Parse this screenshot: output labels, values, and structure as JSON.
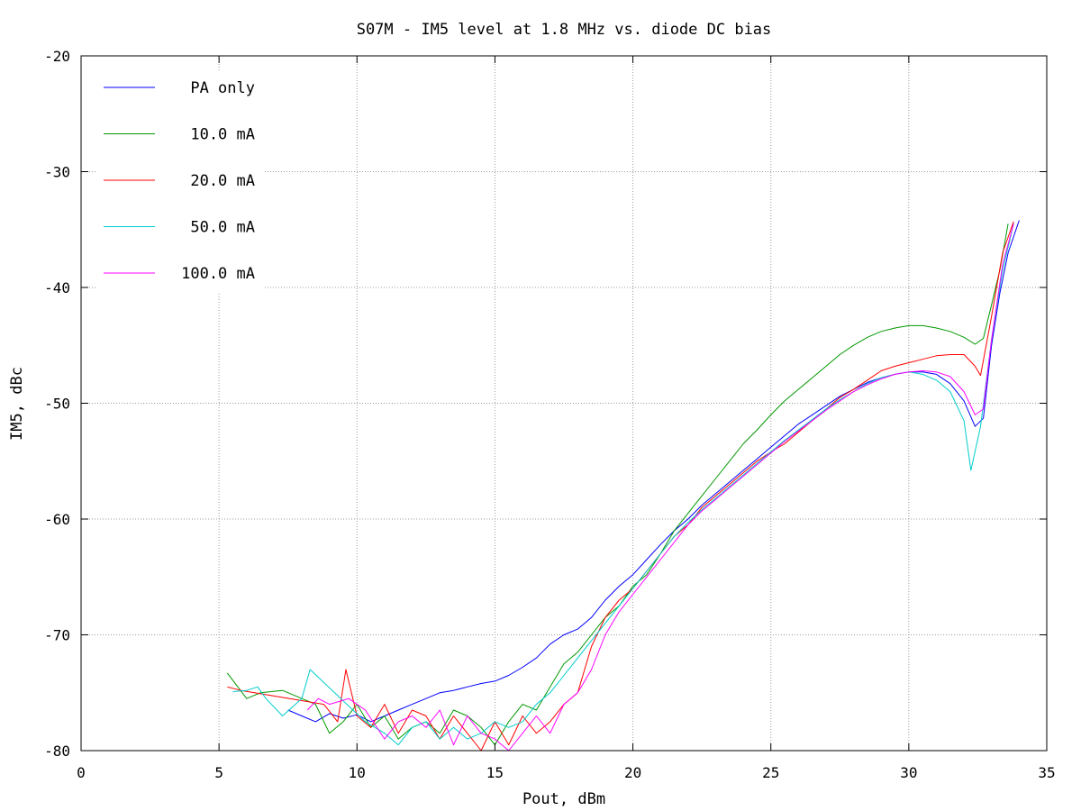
{
  "chart_data": {
    "type": "line",
    "title": "S07M - IM5 level at 1.8 MHz vs. diode DC bias",
    "xlabel": "Pout, dBm",
    "ylabel": "IM5, dBc",
    "xlim": [
      0,
      35
    ],
    "ylim": [
      -80,
      -20
    ],
    "xticks": [
      0,
      5,
      10,
      15,
      20,
      25,
      30,
      35
    ],
    "yticks": [
      -80,
      -70,
      -60,
      -50,
      -40,
      -30,
      -20
    ],
    "xtick_labels": [
      "0",
      "5",
      "10",
      "15",
      "20",
      "25",
      "30",
      "35"
    ],
    "ytick_labels": [
      "-80",
      "-70",
      "-60",
      "-50",
      "-40",
      "-30",
      "-20"
    ],
    "grid": true,
    "legend_position": "top-left",
    "series": [
      {
        "name": "PA only",
        "color": "#0000ff",
        "x": [
          7.5,
          8.0,
          8.5,
          9.0,
          9.5,
          10.0,
          10.5,
          11.0,
          11.5,
          12.0,
          12.5,
          13.0,
          13.5,
          14.0,
          14.5,
          15.0,
          15.5,
          16.0,
          16.5,
          17.0,
          17.5,
          18.0,
          18.5,
          19.0,
          19.5,
          20.0,
          20.5,
          21.0,
          21.5,
          22.0,
          22.5,
          23.0,
          23.5,
          24.0,
          24.5,
          25.0,
          25.5,
          26.0,
          26.5,
          27.0,
          27.5,
          28.0,
          28.5,
          29.0,
          29.5,
          30.0,
          30.5,
          31.0,
          31.5,
          32.0,
          32.4,
          32.7,
          33.0,
          33.3,
          33.6,
          34.0
        ],
        "y": [
          -76.5,
          -77.0,
          -77.5,
          -76.8,
          -77.2,
          -76.9,
          -77.5,
          -77.0,
          -76.5,
          -76.0,
          -75.5,
          -75.0,
          -74.8,
          -74.5,
          -74.2,
          -74.0,
          -73.5,
          -72.8,
          -72.0,
          -70.8,
          -70.0,
          -69.5,
          -68.5,
          -67.0,
          -65.8,
          -64.8,
          -63.5,
          -62.2,
          -61.0,
          -60.0,
          -58.8,
          -57.8,
          -56.8,
          -55.8,
          -54.8,
          -53.8,
          -52.8,
          -51.8,
          -51.0,
          -50.2,
          -49.4,
          -48.8,
          -48.2,
          -47.8,
          -47.5,
          -47.3,
          -47.3,
          -47.5,
          -48.3,
          -49.8,
          -52.0,
          -51.3,
          -45.0,
          -40.5,
          -37.0,
          -34.2
        ]
      },
      {
        "name": "10.0 mA",
        "color": "#009900",
        "x": [
          5.3,
          6.0,
          6.5,
          7.3,
          8.5,
          9.0,
          9.5,
          10.0,
          10.5,
          11.0,
          11.5,
          12.0,
          12.5,
          13.0,
          13.5,
          14.0,
          14.5,
          15.0,
          15.5,
          16.0,
          16.5,
          17.0,
          17.5,
          18.0,
          18.5,
          19.0,
          19.5,
          20.0,
          20.5,
          21.0,
          21.5,
          22.0,
          22.5,
          23.0,
          23.5,
          24.0,
          24.5,
          25.0,
          25.5,
          26.0,
          26.5,
          27.0,
          27.5,
          28.0,
          28.5,
          29.0,
          29.5,
          30.0,
          30.5,
          31.0,
          31.5,
          32.0,
          32.4,
          32.7,
          33.0,
          33.3,
          33.6
        ],
        "y": [
          -73.3,
          -75.5,
          -75.0,
          -74.8,
          -76.0,
          -78.5,
          -77.5,
          -76.0,
          -78.0,
          -77.0,
          -79.0,
          -78.0,
          -77.5,
          -78.5,
          -76.5,
          -77.0,
          -78.0,
          -79.5,
          -77.5,
          -76.0,
          -76.5,
          -74.5,
          -72.5,
          -71.5,
          -70.0,
          -68.5,
          -67.5,
          -65.8,
          -64.8,
          -63.0,
          -61.0,
          -59.5,
          -58.0,
          -56.5,
          -55.0,
          -53.5,
          -52.3,
          -51.0,
          -49.8,
          -48.8,
          -47.8,
          -46.8,
          -45.8,
          -45.0,
          -44.3,
          -43.8,
          -43.5,
          -43.3,
          -43.3,
          -43.5,
          -43.8,
          -44.3,
          -44.9,
          -44.4,
          -41.5,
          -38.5,
          -34.5
        ]
      },
      {
        "name": "20.0 mA",
        "color": "#ff0000",
        "x": [
          5.3,
          5.8,
          8.8,
          9.3,
          9.6,
          10.0,
          10.5,
          11.0,
          11.5,
          12.0,
          12.5,
          13.0,
          13.5,
          14.0,
          14.5,
          15.0,
          15.5,
          16.0,
          16.5,
          17.0,
          17.5,
          18.0,
          18.5,
          19.0,
          19.5,
          20.0,
          20.5,
          21.0,
          21.5,
          22.0,
          22.5,
          23.0,
          23.5,
          24.0,
          24.5,
          25.0,
          25.5,
          26.0,
          26.5,
          27.0,
          27.5,
          28.0,
          28.5,
          29.0,
          29.5,
          30.0,
          30.5,
          31.0,
          31.5,
          32.0,
          32.4,
          32.6,
          33.0,
          33.4,
          33.8
        ],
        "y": [
          -74.5,
          -74.8,
          -76.0,
          -77.5,
          -73.0,
          -77.0,
          -78.0,
          -76.0,
          -78.5,
          -76.5,
          -77.0,
          -79.0,
          -77.0,
          -78.5,
          -80.0,
          -77.5,
          -79.5,
          -77.0,
          -78.5,
          -77.5,
          -76.0,
          -75.0,
          -71.0,
          -68.5,
          -67.0,
          -66.0,
          -64.5,
          -63.0,
          -61.5,
          -60.5,
          -59.0,
          -58.0,
          -57.0,
          -56.0,
          -55.0,
          -54.2,
          -53.5,
          -52.5,
          -51.5,
          -50.5,
          -49.5,
          -48.8,
          -48.0,
          -47.2,
          -46.8,
          -46.5,
          -46.2,
          -45.9,
          -45.8,
          -45.8,
          -46.8,
          -47.6,
          -42.5,
          -37.0,
          -34.3
        ]
      },
      {
        "name": "50.0 mA",
        "color": "#00cccc",
        "x": [
          5.5,
          6.0,
          6.4,
          6.7,
          7.3,
          8.0,
          8.3,
          10.3,
          11.0,
          11.5,
          12.0,
          12.5,
          13.0,
          13.5,
          14.0,
          14.5,
          15.0,
          15.5,
          16.0,
          16.5,
          17.0,
          17.5,
          18.0,
          18.5,
          19.0,
          19.5,
          20.0,
          20.5,
          21.0,
          21.5,
          22.0,
          22.5,
          23.0,
          23.5,
          24.0,
          24.5,
          25.0,
          25.5,
          26.0,
          26.5,
          27.0,
          27.5,
          28.0,
          28.5,
          29.0,
          29.5,
          30.0,
          30.5,
          31.0,
          31.5,
          32.0,
          32.25,
          32.6,
          33.0,
          33.4,
          33.8
        ],
        "y": [
          -74.9,
          -74.8,
          -74.5,
          -75.5,
          -77.0,
          -75.5,
          -73.0,
          -77.5,
          -78.5,
          -79.5,
          -78.0,
          -77.5,
          -79.0,
          -78.0,
          -79.0,
          -78.5,
          -77.5,
          -78.0,
          -77.5,
          -76.0,
          -75.0,
          -73.5,
          -72.0,
          -70.5,
          -69.0,
          -67.5,
          -66.0,
          -64.5,
          -63.0,
          -61.5,
          -60.3,
          -59.2,
          -58.2,
          -57.2,
          -56.2,
          -55.2,
          -54.2,
          -53.2,
          -52.3,
          -51.4,
          -50.5,
          -49.7,
          -49.0,
          -48.3,
          -47.8,
          -47.5,
          -47.3,
          -47.5,
          -48.0,
          -49.0,
          -51.5,
          -55.8,
          -52.0,
          -44.5,
          -38.5,
          -34.5
        ]
      },
      {
        "name": "100.0 mA",
        "color": "#ff00ff",
        "x": [
          8.2,
          8.6,
          9.0,
          9.7,
          10.3,
          11.0,
          11.5,
          12.0,
          12.5,
          13.0,
          13.5,
          14.0,
          14.5,
          15.0,
          15.5,
          16.0,
          16.5,
          17.0,
          17.5,
          18.0,
          18.5,
          19.0,
          19.5,
          20.0,
          20.5,
          21.0,
          21.5,
          22.0,
          22.5,
          23.0,
          23.5,
          24.0,
          24.5,
          25.0,
          25.5,
          26.0,
          26.5,
          27.0,
          27.5,
          28.0,
          28.5,
          29.0,
          29.5,
          30.0,
          30.5,
          31.0,
          31.5,
          32.0,
          32.4,
          32.7,
          33.0,
          33.4,
          33.8
        ],
        "y": [
          -76.5,
          -75.5,
          -76.0,
          -75.5,
          -76.5,
          -79.0,
          -77.5,
          -77.0,
          -78.0,
          -76.5,
          -79.5,
          -77.0,
          -78.5,
          -79.0,
          -80.0,
          -78.5,
          -77.0,
          -78.5,
          -76.0,
          -75.0,
          -73.0,
          -70.0,
          -68.0,
          -66.5,
          -65.0,
          -63.5,
          -62.0,
          -60.5,
          -59.3,
          -58.3,
          -57.3,
          -56.3,
          -55.3,
          -54.3,
          -53.3,
          -52.4,
          -51.5,
          -50.6,
          -49.8,
          -49.0,
          -48.4,
          -47.9,
          -47.5,
          -47.3,
          -47.2,
          -47.3,
          -47.7,
          -49.0,
          -51.0,
          -50.5,
          -44.5,
          -38.0,
          -34.5
        ]
      }
    ]
  }
}
